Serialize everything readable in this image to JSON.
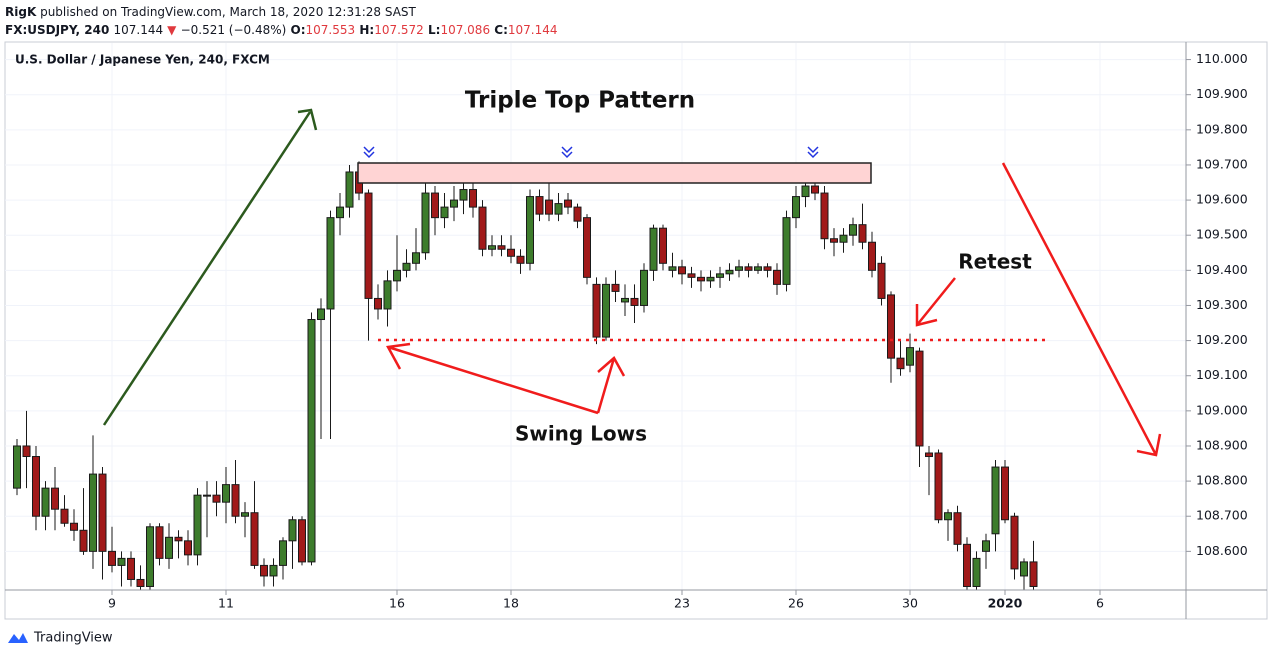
{
  "header": {
    "publisher_name": "RigK",
    "published": "published on TradingView.com, March 18, 2020 12:31:28 SAST",
    "symbol": "FX:USDJPY, 240",
    "last": "107.144",
    "change": "−0.521 (−0.48%)",
    "open_label": "O:",
    "open": "107.553",
    "high_label": "H:",
    "high": "107.572",
    "low_label": "L:",
    "low": "107.086",
    "close_label": "C:",
    "close": "107.144"
  },
  "chart_data": {
    "type": "candlestick",
    "title": "Triple Top Pattern",
    "subtitle": "U.S. Dollar / Japanese Yen, 240, FXCM",
    "annotations": [
      "Swing Lows",
      "Retest"
    ],
    "x": [
      2,
      3,
      4,
      5,
      6,
      7,
      8,
      9,
      10,
      11,
      12,
      13,
      14,
      15,
      16,
      17,
      18,
      19,
      20,
      21,
      22,
      23,
      24,
      25,
      26,
      27,
      28,
      29,
      30,
      31,
      32,
      33,
      34,
      35,
      36,
      37,
      38,
      39,
      40,
      41,
      42,
      43,
      44,
      45,
      46,
      47,
      48,
      49,
      50,
      51,
      52,
      53,
      54,
      55,
      56,
      57,
      58,
      59,
      60,
      61,
      62,
      63,
      64,
      65,
      66,
      67,
      68,
      69,
      70,
      71,
      72,
      73,
      74,
      75,
      76,
      77,
      78,
      79,
      80,
      81,
      82,
      83,
      84,
      85,
      86,
      87,
      88,
      89,
      90,
      91,
      92,
      93,
      94,
      95,
      96,
      97,
      98,
      99,
      100,
      101,
      102,
      103,
      104,
      105,
      106,
      107,
      108,
      109
    ],
    "open": [
      108.78,
      108.9,
      108.87,
      108.7,
      108.78,
      108.72,
      108.68,
      108.66,
      108.6,
      108.82,
      108.6,
      108.56,
      108.58,
      108.52,
      108.5,
      108.67,
      108.58,
      108.64,
      108.63,
      108.59,
      108.76,
      108.76,
      108.74,
      108.79,
      108.7,
      108.71,
      108.56,
      108.53,
      108.56,
      108.63,
      108.69,
      108.57,
      109.26,
      109.29,
      109.55,
      109.58,
      109.68,
      109.62,
      109.32,
      109.29,
      109.37,
      109.4,
      109.42,
      109.45,
      109.62,
      109.55,
      109.58,
      109.6,
      109.63,
      109.58,
      109.46,
      109.47,
      109.46,
      109.44,
      109.42,
      109.61,
      109.6,
      109.56,
      109.6,
      109.58,
      109.55,
      109.36,
      109.21,
      109.36,
      109.31,
      109.32,
      109.3,
      109.4,
      109.52,
      109.4,
      109.41,
      109.39,
      109.38,
      109.37,
      109.38,
      109.39,
      109.4,
      109.41,
      109.4,
      109.41,
      109.4,
      109.36,
      109.55,
      109.61,
      109.64,
      109.62,
      109.49,
      109.48,
      109.5,
      109.53,
      109.48,
      109.42,
      109.33,
      109.15,
      109.13,
      109.17,
      108.88,
      108.88,
      108.69,
      108.71,
      108.62,
      108.5,
      108.6,
      108.65,
      108.84,
      108.7,
      108.53,
      108.57
    ],
    "high": [
      108.92,
      109.0,
      108.9,
      108.8,
      108.84,
      108.76,
      108.72,
      108.78,
      108.93,
      108.84,
      108.67,
      108.6,
      108.6,
      108.56,
      108.68,
      108.68,
      108.68,
      108.66,
      108.66,
      108.78,
      108.8,
      108.8,
      108.84,
      108.86,
      108.74,
      108.8,
      108.58,
      108.58,
      108.64,
      108.7,
      108.7,
      109.28,
      109.32,
      109.57,
      109.62,
      109.7,
      109.71,
      109.63,
      109.36,
      109.4,
      109.5,
      109.46,
      109.52,
      109.67,
      109.64,
      109.62,
      109.64,
      109.66,
      109.65,
      109.6,
      109.5,
      109.5,
      109.5,
      109.46,
      109.63,
      109.63,
      109.69,
      109.62,
      109.62,
      109.59,
      109.56,
      109.38,
      109.38,
      109.4,
      109.36,
      109.36,
      109.42,
      109.53,
      109.53,
      109.45,
      109.43,
      109.41,
      109.4,
      109.4,
      109.41,
      109.42,
      109.43,
      109.42,
      109.42,
      109.42,
      109.42,
      109.57,
      109.64,
      109.68,
      109.66,
      109.64,
      109.52,
      109.52,
      109.55,
      109.59,
      109.51,
      109.44,
      109.34,
      109.2,
      109.22,
      109.18,
      108.9,
      108.89,
      108.72,
      108.73,
      108.64,
      108.6,
      108.65,
      108.86,
      108.86,
      108.71,
      108.58,
      108.63
    ],
    "low": [
      108.76,
      108.78,
      108.66,
      108.66,
      108.66,
      108.67,
      108.63,
      108.59,
      108.55,
      108.52,
      108.54,
      108.5,
      108.5,
      108.48,
      108.49,
      108.56,
      108.55,
      108.58,
      108.56,
      108.56,
      108.64,
      108.7,
      108.68,
      108.68,
      108.64,
      108.55,
      108.5,
      108.5,
      108.52,
      108.55,
      108.56,
      108.56,
      108.92,
      108.92,
      109.5,
      109.55,
      109.6,
      109.2,
      109.26,
      109.24,
      109.34,
      109.38,
      109.4,
      109.43,
      109.5,
      109.52,
      109.54,
      109.56,
      109.55,
      109.44,
      109.44,
      109.44,
      109.42,
      109.39,
      109.4,
      109.54,
      109.54,
      109.54,
      109.56,
      109.52,
      109.36,
      109.19,
      109.2,
      109.31,
      109.27,
      109.25,
      109.28,
      109.37,
      109.4,
      109.38,
      109.36,
      109.35,
      109.34,
      109.35,
      109.35,
      109.37,
      109.38,
      109.38,
      109.39,
      109.38,
      109.33,
      109.34,
      109.52,
      109.58,
      109.6,
      109.46,
      109.44,
      109.45,
      109.47,
      109.46,
      109.38,
      109.3,
      109.08,
      109.1,
      109.11,
      108.84,
      108.76,
      108.68,
      108.63,
      108.6,
      108.48,
      108.48,
      108.55,
      108.6,
      108.68,
      108.52,
      108.48,
      108.48
    ],
    "close": [
      108.9,
      108.87,
      108.7,
      108.78,
      108.72,
      108.68,
      108.66,
      108.6,
      108.82,
      108.6,
      108.56,
      108.58,
      108.52,
      108.5,
      108.67,
      108.58,
      108.64,
      108.63,
      108.59,
      108.76,
      108.76,
      108.74,
      108.79,
      108.7,
      108.71,
      108.56,
      108.53,
      108.56,
      108.63,
      108.69,
      108.57,
      109.26,
      109.29,
      109.55,
      109.58,
      109.68,
      109.62,
      109.32,
      109.29,
      109.37,
      109.4,
      109.42,
      109.45,
      109.62,
      109.55,
      109.58,
      109.6,
      109.63,
      109.58,
      109.46,
      109.47,
      109.46,
      109.44,
      109.42,
      109.61,
      109.56,
      109.56,
      109.59,
      109.58,
      109.54,
      109.38,
      109.21,
      109.36,
      109.34,
      109.32,
      109.3,
      109.4,
      109.52,
      109.42,
      109.41,
      109.39,
      109.38,
      109.37,
      109.38,
      109.39,
      109.4,
      109.41,
      109.4,
      109.41,
      109.4,
      109.36,
      109.55,
      109.61,
      109.64,
      109.62,
      109.49,
      109.48,
      109.5,
      109.53,
      109.48,
      109.4,
      109.32,
      109.15,
      109.12,
      109.18,
      108.9,
      108.87,
      108.69,
      108.71,
      108.62,
      108.5,
      108.58,
      108.63,
      108.84,
      108.69,
      108.55,
      108.57,
      108.5
    ],
    "up_color": "#3d7c2c",
    "down_color": "#a11a1a",
    "xlim": [
      0,
      125
    ],
    "xticks": [
      {
        "value": 12,
        "label": "9"
      },
      {
        "value": 24,
        "label": "11"
      },
      {
        "value": 42,
        "label": "16"
      },
      {
        "value": 54,
        "label": "18"
      },
      {
        "value": 72,
        "label": "23"
      },
      {
        "value": 84,
        "label": "26"
      },
      {
        "value": 96,
        "label": "30"
      },
      {
        "value": 106,
        "label": "2020"
      },
      {
        "value": 116,
        "label": "6"
      }
    ],
    "ylim": [
      108.49,
      110.05
    ],
    "yticks": [
      {
        "value": 108.6,
        "label": "108.600"
      },
      {
        "value": 108.7,
        "label": "108.700"
      },
      {
        "value": 108.8,
        "label": "108.800"
      },
      {
        "value": 108.9,
        "label": "108.900"
      },
      {
        "value": 109.0,
        "label": "109.000"
      },
      {
        "value": 109.1,
        "label": "109.100"
      },
      {
        "value": 109.2,
        "label": "109.200"
      },
      {
        "value": 109.3,
        "label": "109.300"
      },
      {
        "value": 109.4,
        "label": "109.400"
      },
      {
        "value": 109.5,
        "label": "109.500"
      },
      {
        "value": 109.6,
        "label": "109.600"
      },
      {
        "value": 109.7,
        "label": "109.700"
      },
      {
        "value": 109.8,
        "label": "109.800"
      },
      {
        "value": 109.9,
        "label": "109.900"
      },
      {
        "value": 110.0,
        "label": "110.000"
      }
    ],
    "grid": true
  },
  "footer": {
    "brand": "TradingView"
  }
}
